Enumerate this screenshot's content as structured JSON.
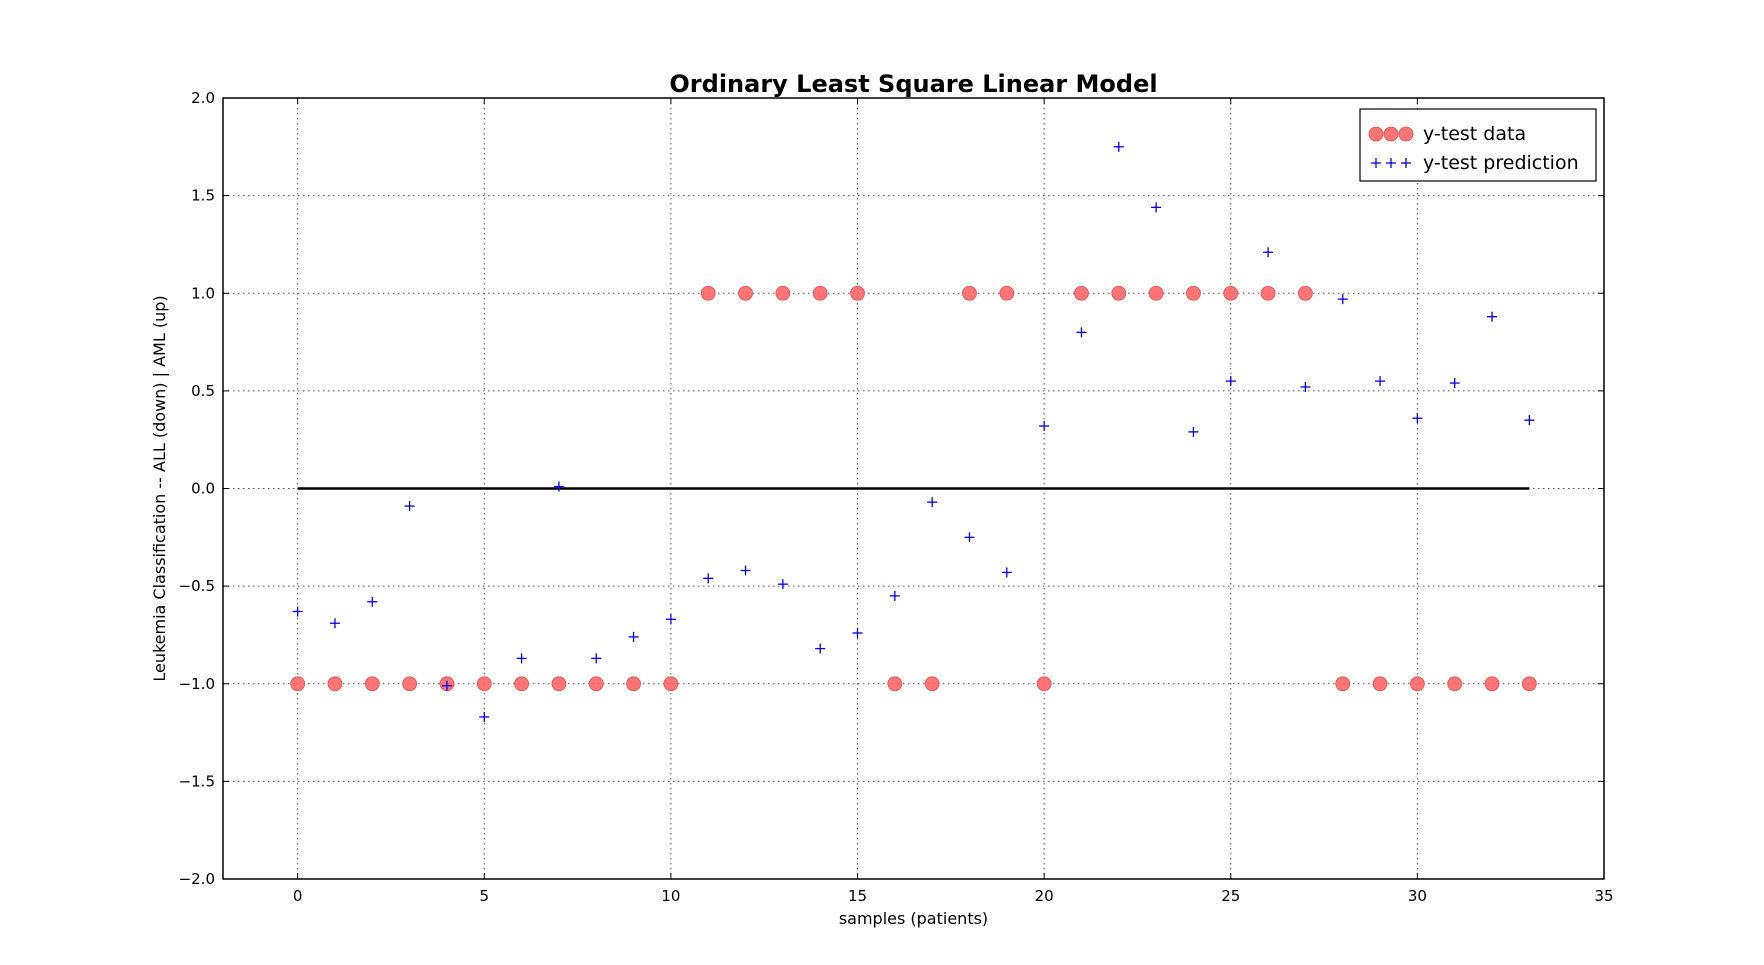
{
  "chart_data": {
    "type": "scatter",
    "title": "Ordinary Least Square Linear Model",
    "xlabel": "samples (patients)",
    "ylabel": "Leukemia Classification -- ALL (down) | AML (up)",
    "xlim": [
      -2,
      35
    ],
    "ylim": [
      -2.0,
      2.0
    ],
    "xticks": [
      0,
      5,
      10,
      15,
      20,
      25,
      30,
      35
    ],
    "xtick_labels": [
      "0",
      "5",
      "10",
      "15",
      "20",
      "25",
      "30",
      "35"
    ],
    "yticks": [
      -2.0,
      -1.5,
      -1.0,
      -0.5,
      0.0,
      0.5,
      1.0,
      1.5,
      2.0
    ],
    "ytick_labels": [
      "−2.0",
      "−1.5",
      "−1.0",
      "−0.5",
      "0.0",
      "0.5",
      "1.0",
      "1.5",
      "2.0"
    ],
    "grid": true,
    "legend_position": "top-right",
    "series": [
      {
        "name": "y-test data",
        "marker": "circle",
        "color": "#ff6666",
        "x": [
          0,
          1,
          2,
          3,
          4,
          5,
          6,
          7,
          8,
          9,
          10,
          11,
          12,
          13,
          14,
          15,
          16,
          17,
          18,
          19,
          20,
          21,
          22,
          23,
          24,
          25,
          26,
          27,
          28,
          29,
          30,
          31,
          32,
          33
        ],
        "y": [
          -1,
          -1,
          -1,
          -1,
          -1,
          -1,
          -1,
          -1,
          -1,
          -1,
          -1,
          1,
          1,
          1,
          1,
          1,
          -1,
          -1,
          1,
          1,
          -1,
          1,
          1,
          1,
          1,
          1,
          1,
          1,
          -1,
          -1,
          -1,
          -1,
          -1,
          -1
        ]
      },
      {
        "name": "y-test prediction",
        "marker": "plus",
        "color": "#0000ff",
        "x": [
          0,
          1,
          2,
          3,
          4,
          5,
          6,
          7,
          8,
          9,
          10,
          11,
          12,
          13,
          14,
          15,
          16,
          17,
          18,
          19,
          20,
          21,
          22,
          23,
          24,
          25,
          26,
          27,
          28,
          29,
          30,
          31,
          32,
          33
        ],
        "y": [
          -0.63,
          -0.69,
          -0.58,
          -0.09,
          -1.01,
          -1.17,
          -0.87,
          0.01,
          -0.87,
          -0.76,
          -0.67,
          -0.46,
          -0.42,
          -0.49,
          -0.82,
          -0.74,
          -0.55,
          -0.07,
          -0.25,
          -0.43,
          0.32,
          0.8,
          1.75,
          1.44,
          0.29,
          0.55,
          1.21,
          0.52,
          0.97,
          0.55,
          0.36,
          0.54,
          0.88,
          0.35
        ]
      }
    ],
    "hline": {
      "y": 0.0,
      "x_start": 0,
      "x_end": 33,
      "color": "#000000"
    }
  }
}
